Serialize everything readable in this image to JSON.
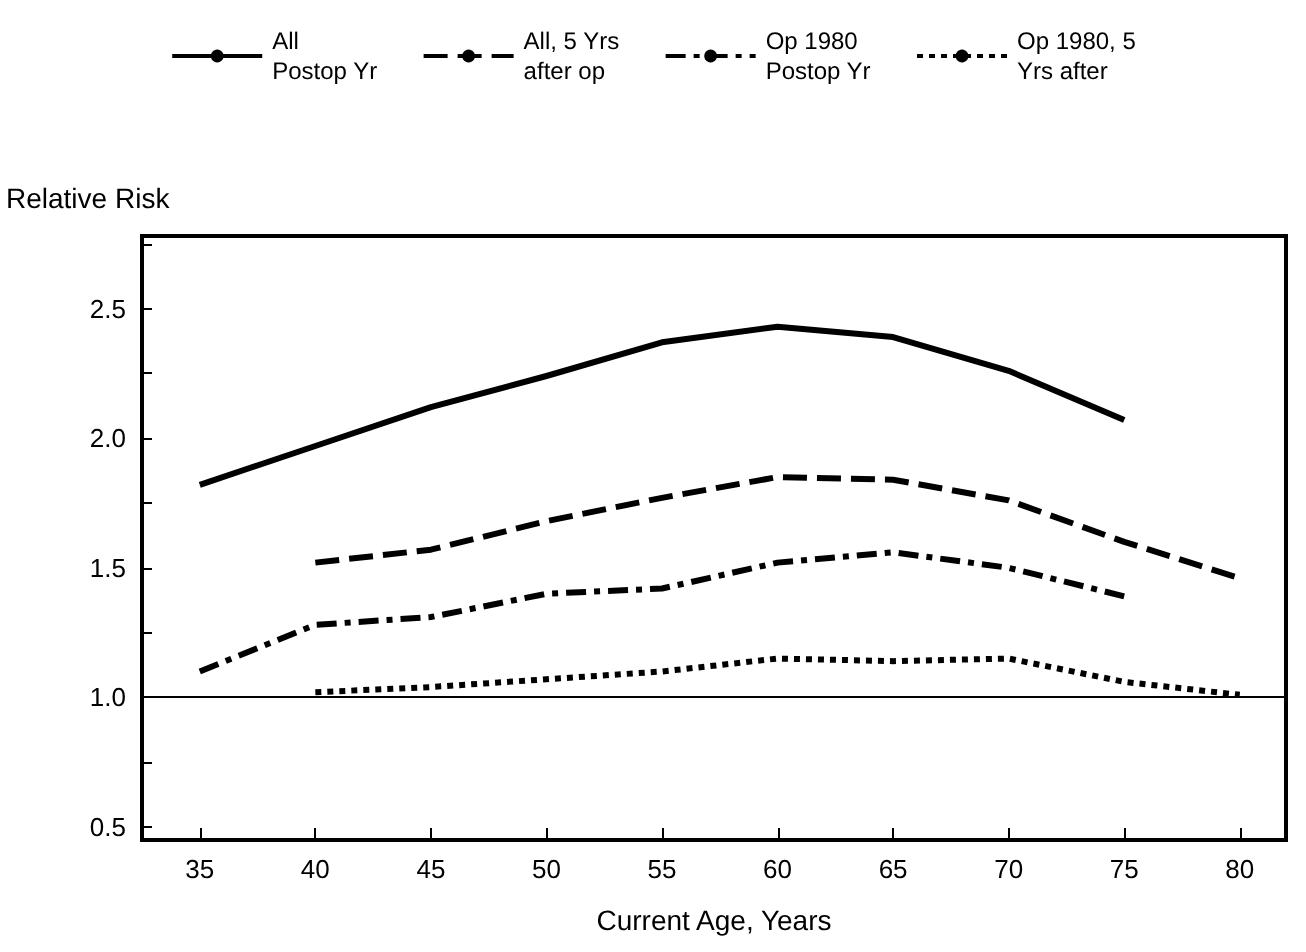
{
  "chart_data": {
    "type": "line",
    "xlabel": "Current Age, Years",
    "ylabel": "Relative Risk",
    "xlim": [
      32.5,
      82
    ],
    "xticks": [
      35,
      40,
      45,
      50,
      55,
      60,
      65,
      70,
      75,
      80
    ],
    "ylim": [
      0.45,
      2.78
    ],
    "yticks": [
      {
        "value": 0.5,
        "label": "0.5"
      },
      {
        "value": 0.75,
        "label": null
      },
      {
        "value": 1,
        "label": "1.0"
      },
      {
        "value": 1.25,
        "label": null
      },
      {
        "value": 1.5,
        "label": "1.5"
      },
      {
        "value": 1.75,
        "label": null
      },
      {
        "value": 2,
        "label": "2.0"
      },
      {
        "value": 2.25,
        "label": null
      },
      {
        "value": 2.5,
        "label": "2.5"
      },
      {
        "value": 2.75,
        "label": null
      }
    ],
    "grid": false,
    "legend": "top",
    "marker": "none",
    "ref_lines": [
      {
        "axis": "y",
        "value": 1,
        "color": "#000000",
        "line_style": "solid"
      }
    ],
    "series": [
      {
        "name": "All\nPostop Yr",
        "color": "#000000",
        "line_style": "solid",
        "x": [
          35,
          40,
          45,
          50,
          55,
          60,
          65,
          70,
          75
        ],
        "values": [
          1.82,
          1.97,
          2.12,
          2.24,
          2.37,
          2.43,
          2.39,
          2.26,
          2.07
        ]
      },
      {
        "name": "All, 5 Yrs\nafter op",
        "color": "#000000",
        "line_style": "dashed",
        "x": [
          40,
          45,
          50,
          55,
          60,
          65,
          70,
          75,
          80
        ],
        "values": [
          1.52,
          1.57,
          1.68,
          1.77,
          1.85,
          1.84,
          1.76,
          1.6,
          1.46
        ]
      },
      {
        "name": "Op 1980\nPostop Yr",
        "color": "#000000",
        "line_style": "dashdot",
        "x": [
          35,
          40,
          45,
          50,
          55,
          60,
          65,
          70,
          75
        ],
        "values": [
          1.1,
          1.28,
          1.31,
          1.4,
          1.42,
          1.52,
          1.56,
          1.5,
          1.39
        ]
      },
      {
        "name": "Op 1980, 5\nYrs after",
        "color": "#000000",
        "line_style": "dotted",
        "x": [
          40,
          45,
          50,
          55,
          60,
          65,
          70,
          75,
          80
        ],
        "values": [
          1.02,
          1.04,
          1.07,
          1.1,
          1.15,
          1.14,
          1.15,
          1.06,
          1.01
        ]
      }
    ]
  }
}
